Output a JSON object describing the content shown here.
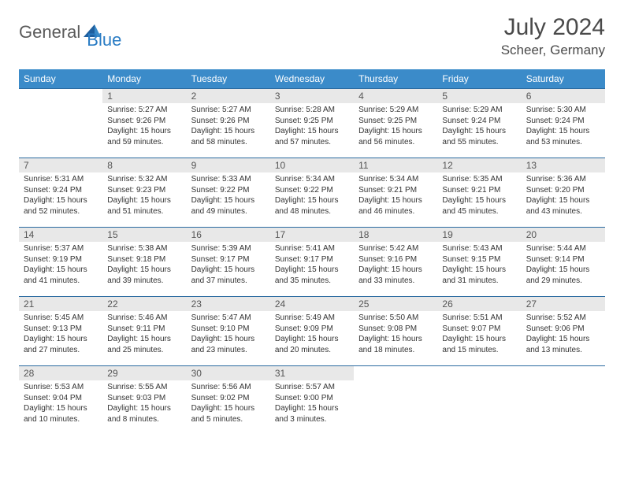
{
  "logo": {
    "part1": "General",
    "part2": "Blue"
  },
  "title": "July 2024",
  "location": "Scheer, Germany",
  "colors": {
    "header_bg": "#3b8bc9",
    "header_text": "#ffffff",
    "daynum_bg": "#e8e8e8",
    "border": "#2a6aa0",
    "logo_gray": "#5a5a5a",
    "logo_blue": "#2a7cc4"
  },
  "daysOfWeek": [
    "Sunday",
    "Monday",
    "Tuesday",
    "Wednesday",
    "Thursday",
    "Friday",
    "Saturday"
  ],
  "weeks": [
    [
      null,
      {
        "n": "1",
        "sr": "5:27 AM",
        "ss": "9:26 PM",
        "dl": "15 hours and 59 minutes."
      },
      {
        "n": "2",
        "sr": "5:27 AM",
        "ss": "9:26 PM",
        "dl": "15 hours and 58 minutes."
      },
      {
        "n": "3",
        "sr": "5:28 AM",
        "ss": "9:25 PM",
        "dl": "15 hours and 57 minutes."
      },
      {
        "n": "4",
        "sr": "5:29 AM",
        "ss": "9:25 PM",
        "dl": "15 hours and 56 minutes."
      },
      {
        "n": "5",
        "sr": "5:29 AM",
        "ss": "9:24 PM",
        "dl": "15 hours and 55 minutes."
      },
      {
        "n": "6",
        "sr": "5:30 AM",
        "ss": "9:24 PM",
        "dl": "15 hours and 53 minutes."
      }
    ],
    [
      {
        "n": "7",
        "sr": "5:31 AM",
        "ss": "9:24 PM",
        "dl": "15 hours and 52 minutes."
      },
      {
        "n": "8",
        "sr": "5:32 AM",
        "ss": "9:23 PM",
        "dl": "15 hours and 51 minutes."
      },
      {
        "n": "9",
        "sr": "5:33 AM",
        "ss": "9:22 PM",
        "dl": "15 hours and 49 minutes."
      },
      {
        "n": "10",
        "sr": "5:34 AM",
        "ss": "9:22 PM",
        "dl": "15 hours and 48 minutes."
      },
      {
        "n": "11",
        "sr": "5:34 AM",
        "ss": "9:21 PM",
        "dl": "15 hours and 46 minutes."
      },
      {
        "n": "12",
        "sr": "5:35 AM",
        "ss": "9:21 PM",
        "dl": "15 hours and 45 minutes."
      },
      {
        "n": "13",
        "sr": "5:36 AM",
        "ss": "9:20 PM",
        "dl": "15 hours and 43 minutes."
      }
    ],
    [
      {
        "n": "14",
        "sr": "5:37 AM",
        "ss": "9:19 PM",
        "dl": "15 hours and 41 minutes."
      },
      {
        "n": "15",
        "sr": "5:38 AM",
        "ss": "9:18 PM",
        "dl": "15 hours and 39 minutes."
      },
      {
        "n": "16",
        "sr": "5:39 AM",
        "ss": "9:17 PM",
        "dl": "15 hours and 37 minutes."
      },
      {
        "n": "17",
        "sr": "5:41 AM",
        "ss": "9:17 PM",
        "dl": "15 hours and 35 minutes."
      },
      {
        "n": "18",
        "sr": "5:42 AM",
        "ss": "9:16 PM",
        "dl": "15 hours and 33 minutes."
      },
      {
        "n": "19",
        "sr": "5:43 AM",
        "ss": "9:15 PM",
        "dl": "15 hours and 31 minutes."
      },
      {
        "n": "20",
        "sr": "5:44 AM",
        "ss": "9:14 PM",
        "dl": "15 hours and 29 minutes."
      }
    ],
    [
      {
        "n": "21",
        "sr": "5:45 AM",
        "ss": "9:13 PM",
        "dl": "15 hours and 27 minutes."
      },
      {
        "n": "22",
        "sr": "5:46 AM",
        "ss": "9:11 PM",
        "dl": "15 hours and 25 minutes."
      },
      {
        "n": "23",
        "sr": "5:47 AM",
        "ss": "9:10 PM",
        "dl": "15 hours and 23 minutes."
      },
      {
        "n": "24",
        "sr": "5:49 AM",
        "ss": "9:09 PM",
        "dl": "15 hours and 20 minutes."
      },
      {
        "n": "25",
        "sr": "5:50 AM",
        "ss": "9:08 PM",
        "dl": "15 hours and 18 minutes."
      },
      {
        "n": "26",
        "sr": "5:51 AM",
        "ss": "9:07 PM",
        "dl": "15 hours and 15 minutes."
      },
      {
        "n": "27",
        "sr": "5:52 AM",
        "ss": "9:06 PM",
        "dl": "15 hours and 13 minutes."
      }
    ],
    [
      {
        "n": "28",
        "sr": "5:53 AM",
        "ss": "9:04 PM",
        "dl": "15 hours and 10 minutes."
      },
      {
        "n": "29",
        "sr": "5:55 AM",
        "ss": "9:03 PM",
        "dl": "15 hours and 8 minutes."
      },
      {
        "n": "30",
        "sr": "5:56 AM",
        "ss": "9:02 PM",
        "dl": "15 hours and 5 minutes."
      },
      {
        "n": "31",
        "sr": "5:57 AM",
        "ss": "9:00 PM",
        "dl": "15 hours and 3 minutes."
      },
      null,
      null,
      null
    ]
  ],
  "labels": {
    "sunrise": "Sunrise:",
    "sunset": "Sunset:",
    "daylight": "Daylight:"
  }
}
